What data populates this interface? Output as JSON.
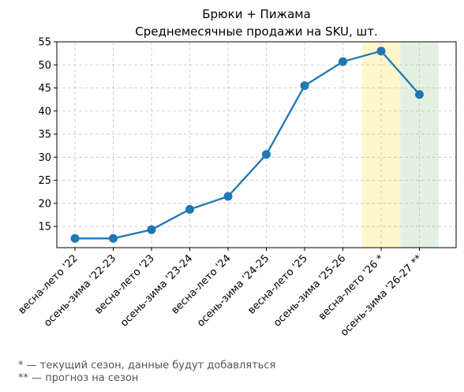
{
  "colors": {
    "line": "#1f77b4",
    "current_season_band": "#fff7cc",
    "forecast_band": "#e3f1e2",
    "grid": "#b0b0b0",
    "footnote_text": "#555555"
  },
  "chart_data": {
    "type": "line",
    "title": [
      "Брюки + Пижама",
      "Среднемесячные продажи на SKU, шт."
    ],
    "xlabel": "",
    "ylabel": "",
    "categories": [
      "весна-лето '22",
      "осень-зима '22-23",
      "весна-лето '23",
      "осень-зима '23-24",
      "весна-лето '24",
      "осень-зима '24-25",
      "весна-лето '25",
      "осень-зима '25-26",
      "весна-лето '26 *",
      "осень-зима '26-27 **"
    ],
    "series": [
      {
        "values": [
          12.4,
          12.4,
          14.3,
          18.7,
          21.5,
          30.6,
          45.5,
          50.7,
          53.0,
          43.6
        ]
      }
    ],
    "ylim": [
      10.4,
      55
    ],
    "yticks": [
      15,
      20,
      25,
      30,
      35,
      40,
      45,
      50,
      55
    ],
    "grid": true,
    "highlight_bands": [
      {
        "category_index": 8,
        "meaning": "current season"
      },
      {
        "category_index": 9,
        "meaning": "forecast"
      }
    ]
  },
  "footnotes": [
    "* — текущий сезон, данные будут добавляться",
    "** — прогноз на сезон"
  ]
}
